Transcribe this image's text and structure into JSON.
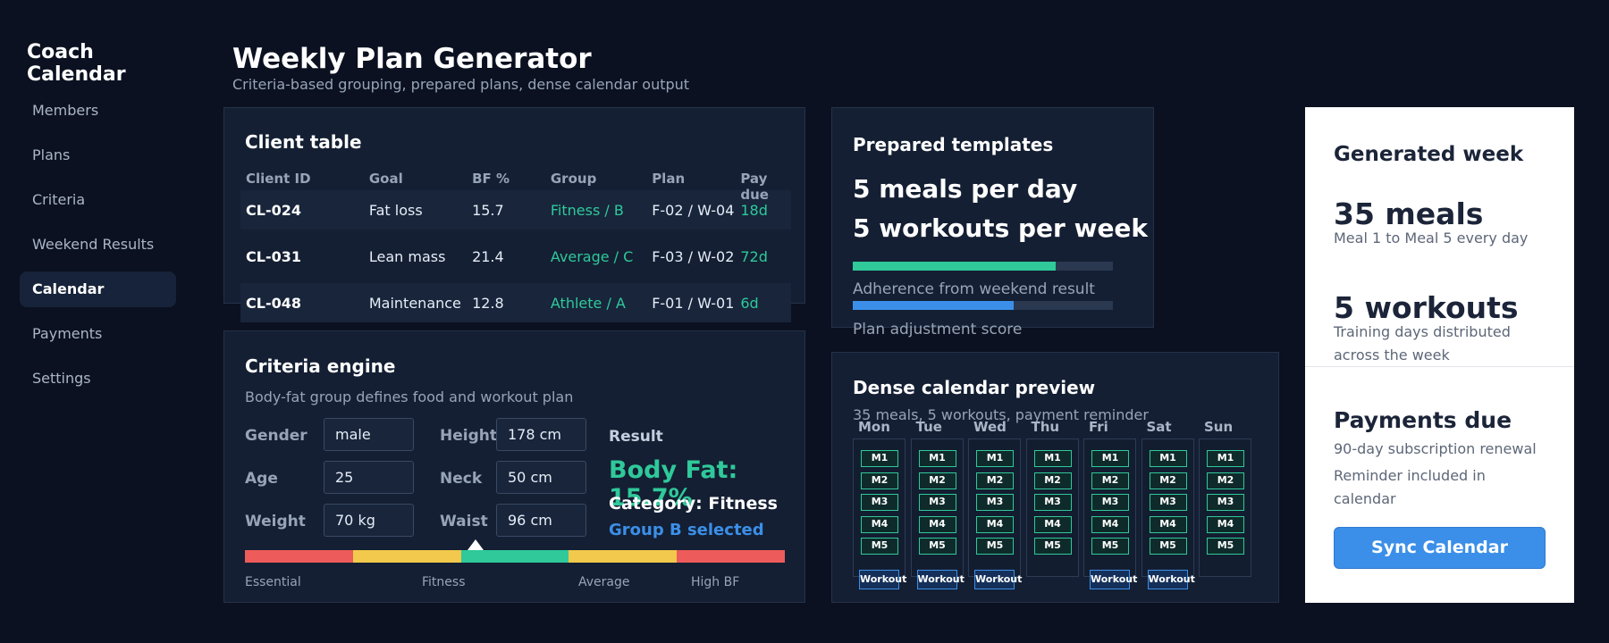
{
  "app": {
    "brand": "Coach Calendar"
  },
  "sidebar": {
    "items": [
      {
        "label": "Members"
      },
      {
        "label": "Plans"
      },
      {
        "label": "Criteria"
      },
      {
        "label": "Weekend Results"
      },
      {
        "label": "Calendar",
        "active": true
      },
      {
        "label": "Payments"
      },
      {
        "label": "Settings"
      }
    ]
  },
  "header": {
    "title": "Weekly Plan Generator",
    "subtitle": "Criteria-based grouping, prepared plans, dense calendar output"
  },
  "client_table": {
    "title": "Client table",
    "columns": [
      "Client ID",
      "Goal",
      "BF %",
      "Group",
      "Plan",
      "Pay due"
    ],
    "rows": [
      {
        "id": "CL-024",
        "goal": "Fat loss",
        "bf": "15.7",
        "group": "Fitness / B",
        "plan": "F-02 / W-04",
        "due": "18d"
      },
      {
        "id": "CL-031",
        "goal": "Lean mass",
        "bf": "21.4",
        "group": "Average / C",
        "plan": "F-03 / W-02",
        "due": "72d"
      },
      {
        "id": "CL-048",
        "goal": "Maintenance",
        "bf": "12.8",
        "group": "Athlete / A",
        "plan": "F-01 / W-01",
        "due": "6d"
      }
    ]
  },
  "criteria": {
    "title": "Criteria engine",
    "description": "Body-fat group defines food and workout plan",
    "fields": {
      "gender": {
        "label": "Gender",
        "value": "male"
      },
      "age": {
        "label": "Age",
        "value": "25"
      },
      "weight": {
        "label": "Weight",
        "value": "70 kg"
      },
      "height": {
        "label": "Height",
        "value": "178 cm"
      },
      "neck": {
        "label": "Neck",
        "value": "50 cm"
      },
      "waist": {
        "label": "Waist",
        "value": "96 cm"
      }
    },
    "result_label": "Result",
    "body_fat": "Body Fat: 15.7%",
    "category": "Category: Fitness",
    "group_selected": "Group B selected",
    "scale_labels": [
      "Essential",
      "Fitness",
      "Average",
      "High BF"
    ],
    "scale_colors": [
      "#ee5b5b",
      "#f2c94c",
      "#2fc99a",
      "#f2c94c",
      "#ee5b5b"
    ]
  },
  "templates": {
    "title": "Prepared templates",
    "meals_line": "5 meals per day",
    "workouts_line": "5 workouts per week",
    "adherence_label": "Adherence from weekend result",
    "adherence_value": 0.78,
    "adjust_label": "Plan adjustment score",
    "adjust_value": 0.62
  },
  "calendar": {
    "title": "Dense calendar preview",
    "subtitle": "35 meals, 5 workouts, payment reminder",
    "days": [
      {
        "name": "Mon",
        "workout": "Workout"
      },
      {
        "name": "Tue",
        "workout": "Workout"
      },
      {
        "name": "Wed",
        "workout": "Workout"
      },
      {
        "name": "Thu",
        "workout": ""
      },
      {
        "name": "Fri",
        "workout": "Workout"
      },
      {
        "name": "Sat",
        "workout": "Workout"
      },
      {
        "name": "Sun",
        "workout": ""
      }
    ],
    "meals": [
      "M1",
      "M2",
      "M3",
      "M4",
      "M5"
    ]
  },
  "generated": {
    "title": "Generated week",
    "meals_big": "35 meals",
    "meals_small": "Meal 1 to Meal 5 every day",
    "workouts_big": "5 workouts",
    "workouts_small": "Training days distributed across the week",
    "payments_title": "Payments due",
    "payments_line1": "90-day subscription renewal",
    "payments_line2": "Reminder included in calendar",
    "sync_label": "Sync Calendar"
  },
  "colors": {
    "accent_green": "#2fc99a",
    "accent_blue": "#3b8fe8",
    "background": "#0b1120"
  }
}
